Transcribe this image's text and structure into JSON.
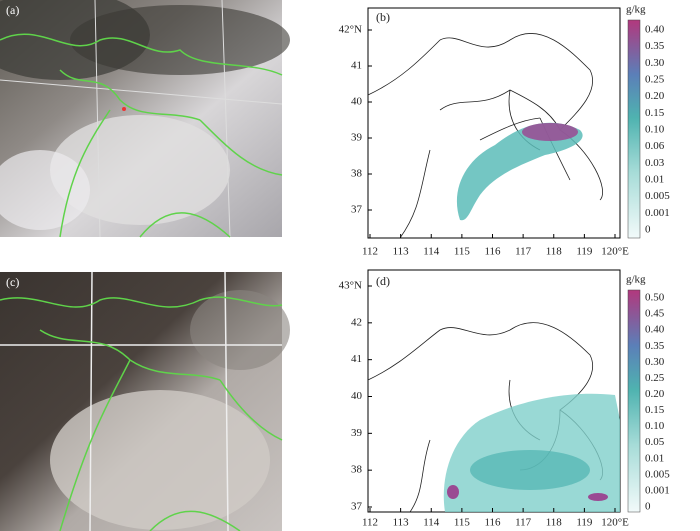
{
  "panels": [
    {
      "label": "(a)"
    },
    {
      "label": "(b)",
      "x_labels": [
        "112",
        "113",
        "114",
        "115",
        "116",
        "117",
        "118",
        "119",
        "120°E"
      ],
      "y_labels": [
        "42°N",
        "41",
        "40",
        "39",
        "38",
        "37"
      ],
      "colorbar_unit": "g/kg",
      "colorbar_labels": [
        "0.40",
        "0.35",
        "0.30",
        "0.25",
        "0.20",
        "0.15",
        "0.10",
        "0.06",
        "0.03",
        "0.01",
        "0.005",
        "0.001",
        "0"
      ]
    },
    {
      "label": "(c)"
    },
    {
      "label": "(d)",
      "x_labels": [
        "112",
        "113",
        "114",
        "115",
        "116",
        "117",
        "118",
        "119",
        "120°E"
      ],
      "y_labels": [
        "43°N",
        "42",
        "41",
        "40",
        "39",
        "38",
        "37"
      ],
      "colorbar_unit": "g/kg",
      "colorbar_labels": [
        "0.50",
        "0.45",
        "0.40",
        "0.35",
        "0.30",
        "0.25",
        "0.20",
        "0.15",
        "0.10",
        "0.05",
        "0.01",
        "0.005",
        "0.001",
        "0"
      ]
    }
  ]
}
